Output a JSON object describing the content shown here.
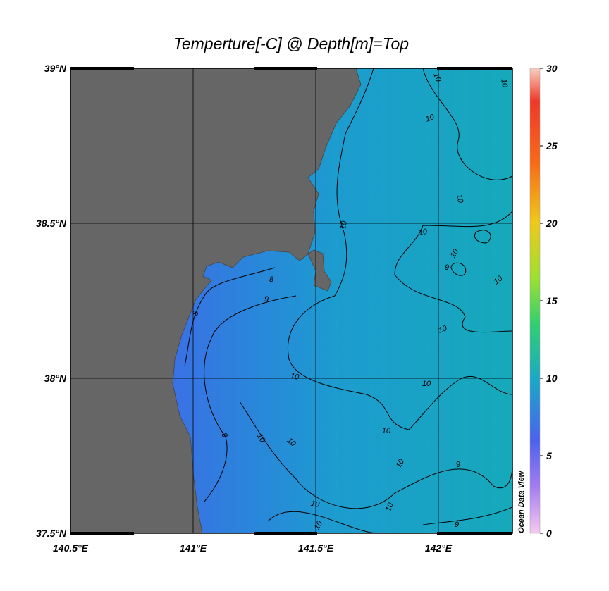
{
  "title": "Temperture[-C] @ Depth[m]=Top",
  "map": {
    "lonlim": [
      140.5,
      142.3
    ],
    "latlim": [
      37.5,
      39
    ],
    "lonticks": [
      {
        "value": 140.5,
        "label": "140.5°E"
      },
      {
        "value": 141,
        "label": "141°E"
      },
      {
        "value": 141.5,
        "label": "141.5°E"
      },
      {
        "value": 142,
        "label": "142°E"
      }
    ],
    "latticks": [
      {
        "value": 37.5,
        "label": "37.5°N"
      },
      {
        "value": 38,
        "label": "38°N"
      },
      {
        "value": 38.5,
        "label": "38.5°N"
      },
      {
        "value": 39,
        "label": "39°N"
      }
    ],
    "grid": true,
    "contour_labels": [
      "10",
      "10",
      "10",
      "10",
      "10",
      "10",
      "10",
      "10",
      "10",
      "10",
      "10",
      "10",
      "10",
      "10",
      "10",
      "10",
      "10",
      "10",
      "9",
      "9",
      "9",
      "9",
      "9",
      "8",
      "8"
    ]
  },
  "colorbar": {
    "lim": [
      0,
      30
    ],
    "ticks": [
      0,
      5,
      10,
      15,
      20,
      25,
      30
    ]
  },
  "watermark": "Ocean Data View"
}
